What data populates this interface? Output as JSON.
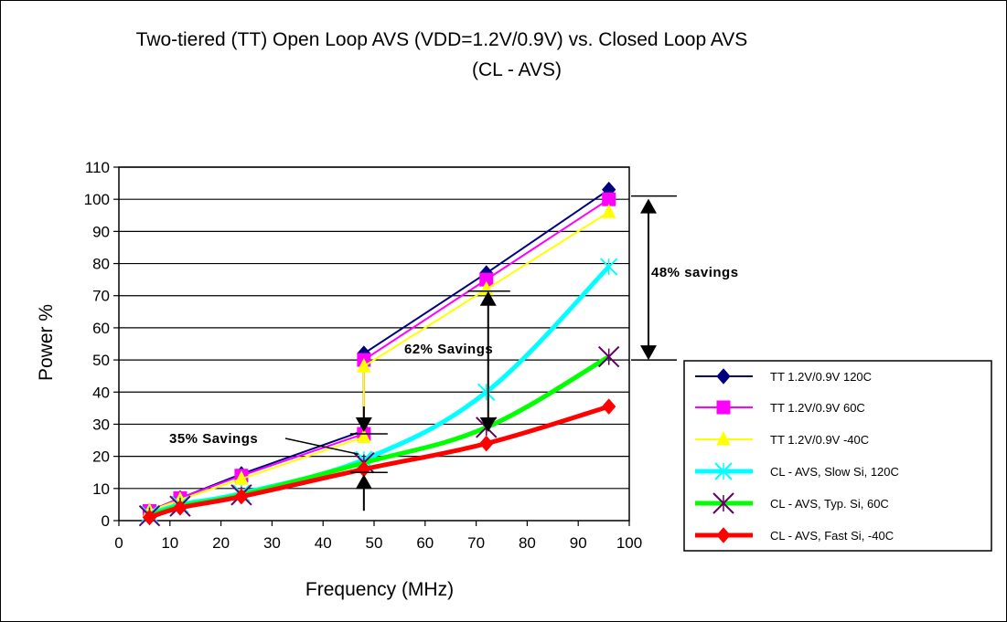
{
  "chart_data": {
    "type": "line",
    "title_line1": "Two-tiered (TT) Open Loop AVS (VDD=1.2V/0.9V) vs. Closed Loop AVS",
    "title_line2": "(CL - AVS)",
    "xlabel": "Frequency (MHz)",
    "ylabel": "Power %",
    "xlim": [
      0,
      100
    ],
    "ylim": [
      0,
      110
    ],
    "xticks": [
      0,
      10,
      20,
      30,
      40,
      50,
      60,
      70,
      80,
      90,
      100
    ],
    "yticks": [
      0,
      10,
      20,
      30,
      40,
      50,
      60,
      70,
      80,
      90,
      100,
      110
    ],
    "grid": "horizontal",
    "legend_position": "right",
    "series": [
      {
        "name": "TT 1.2V/0.9V 120C",
        "color": "#000080",
        "marker": "diamond",
        "width": 2,
        "x": [
          6,
          12,
          24,
          48,
          48,
          72,
          96
        ],
        "y": [
          3,
          7,
          14.5,
          28,
          52,
          77,
          103
        ]
      },
      {
        "name": "TT 1.2V/0.9V 60C",
        "color": "#ff00ff",
        "marker": "square",
        "width": 2,
        "x": [
          6,
          12,
          24,
          48,
          48,
          72,
          96
        ],
        "y": [
          3,
          7,
          14,
          27,
          50,
          75,
          100
        ]
      },
      {
        "name": "TT 1.2V/0.9V -40C",
        "color": "#ffff00",
        "marker": "triangle",
        "width": 2,
        "x": [
          6,
          12,
          24,
          48,
          48,
          72,
          96
        ],
        "y": [
          3,
          6.5,
          13,
          26,
          48,
          72,
          96
        ]
      },
      {
        "name": "CL - AVS, Slow Si, 120C",
        "color": "#00ffff",
        "marker": "x",
        "width": 5,
        "x": [
          6,
          12,
          24,
          48,
          72,
          96
        ],
        "y": [
          2,
          5,
          8.5,
          19,
          40,
          79
        ]
      },
      {
        "name": "CL - AVS, Typ. Si, 60C",
        "color": "#00ff00",
        "marker": "x-dark",
        "width": 5,
        "x": [
          6,
          12,
          24,
          48,
          72,
          96
        ],
        "y": [
          1.5,
          4.5,
          8,
          18,
          29,
          51
        ]
      },
      {
        "name": "CL - AVS, Fast Si,  -40C",
        "color": "#ff0000",
        "marker": "diamond",
        "width": 5,
        "x": [
          6,
          12,
          24,
          48,
          72,
          96
        ],
        "y": [
          1,
          4,
          7.5,
          16,
          24,
          35.5
        ]
      }
    ],
    "annotations": [
      {
        "text": "48% savings",
        "from": [
          96,
          101
        ],
        "to": [
          96,
          50
        ]
      },
      {
        "text": "62% Savings",
        "from": [
          72,
          72
        ],
        "to": [
          72,
          27
        ]
      },
      {
        "text": "35% Savings",
        "from": [
          48,
          27
        ],
        "to": [
          48,
          15
        ]
      }
    ]
  }
}
